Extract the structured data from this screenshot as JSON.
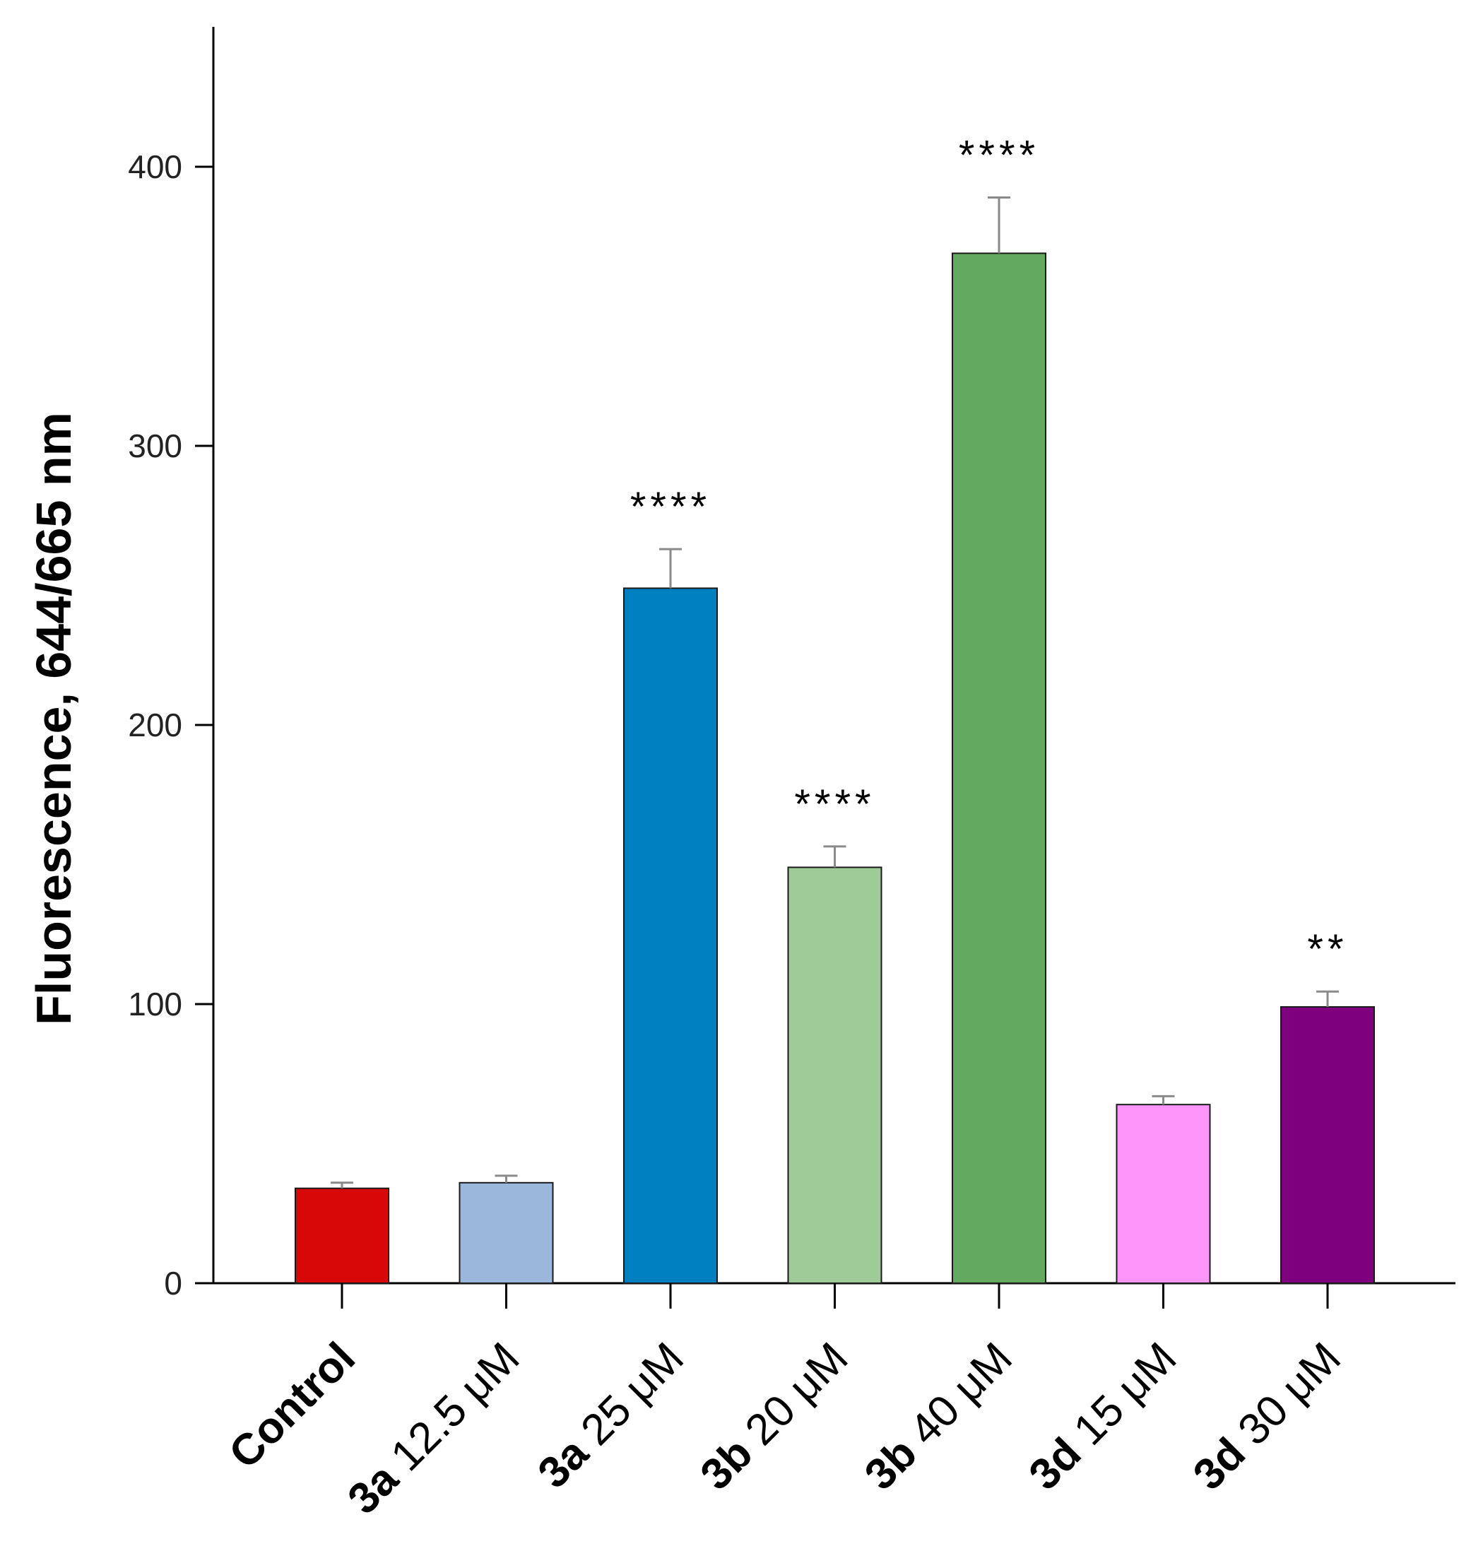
{
  "chart_data": {
    "type": "bar",
    "title": "",
    "ylabel": "Fluorescence, 644/665 nm",
    "xlabel": "",
    "ylim": [
      0,
      450
    ],
    "yticks": [
      0,
      100,
      200,
      300,
      400
    ],
    "grid": false,
    "legend": "none",
    "categories": [
      {
        "compound": "Control",
        "dose": ""
      },
      {
        "compound": "3a",
        "dose": "12.5 μM"
      },
      {
        "compound": "3a",
        "dose": "25 μM"
      },
      {
        "compound": "3b",
        "dose": "20 μM"
      },
      {
        "compound": "3b",
        "dose": "40 μM"
      },
      {
        "compound": "3d",
        "dose": "15 μM"
      },
      {
        "compound": "3d",
        "dose": "30 μM"
      }
    ],
    "values": [
      34,
      36,
      249,
      149,
      369,
      64,
      99
    ],
    "errors": [
      2,
      2.5,
      14,
      7.5,
      20,
      3,
      5.5
    ],
    "significance": [
      "",
      "",
      "****",
      "****",
      "****",
      "",
      "**"
    ],
    "colors": [
      "#d90808",
      "#9bb8dc",
      "#0080c0",
      "#9ecb98",
      "#63aa60",
      "#fd95fb",
      "#7f007f"
    ]
  }
}
